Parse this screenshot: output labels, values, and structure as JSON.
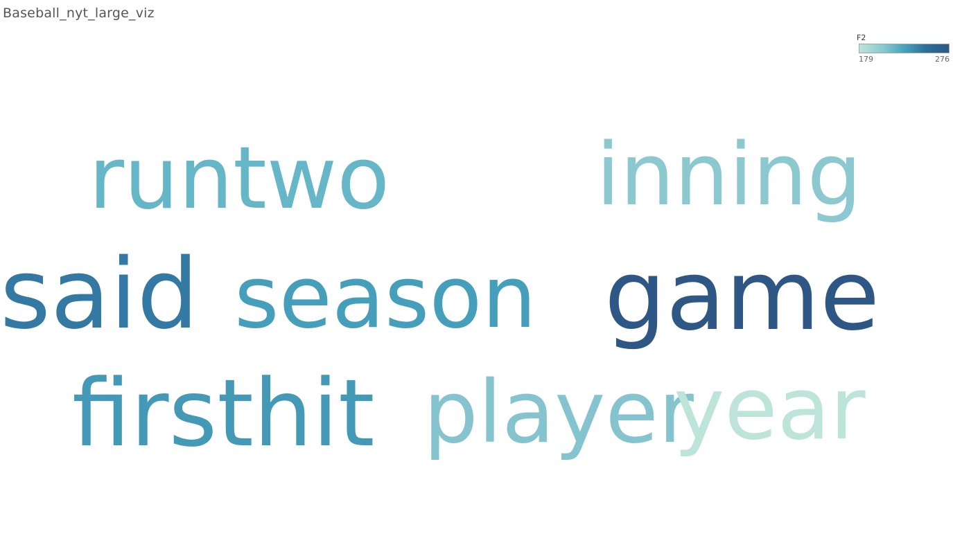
{
  "sheet_title": "Baseball_nyt_large_viz",
  "legend": {
    "title": "F2",
    "min_label": "179",
    "max_label": "276",
    "gradient": [
      "#bde4d9",
      "#8ccbd1",
      "#48a3bd",
      "#2b6e9a",
      "#2f5786"
    ]
  },
  "chart_data": {
    "type": "wordcloud",
    "color_field": "F2",
    "color_range": [
      179,
      276
    ],
    "words": [
      {
        "text": "runtwo",
        "value": 220,
        "color": "#65b6c7"
      },
      {
        "text": "inning",
        "value": 205,
        "color": "#8bc8d0"
      },
      {
        "text": "said",
        "value": 262,
        "color": "#3479a3"
      },
      {
        "text": "season",
        "value": 240,
        "color": "#459fbb"
      },
      {
        "text": "game",
        "value": 276,
        "color": "#2f5786"
      },
      {
        "text": "firsthit",
        "value": 240,
        "color": "#4399b6"
      },
      {
        "text": "player",
        "value": 202,
        "color": "#85c4ce"
      },
      {
        "text": "year",
        "value": 179,
        "color": "#bde4d9"
      }
    ]
  }
}
